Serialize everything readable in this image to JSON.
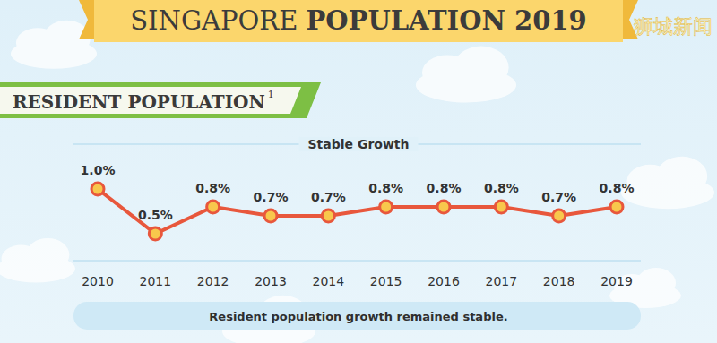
{
  "chart_data": {
    "type": "line",
    "title": "SINGAPORE POPULATION 2019",
    "watermark": "狮城新闻",
    "section": "RESIDENT POPULATION",
    "section_note": "1",
    "subtitle": "Stable Growth",
    "annotation": "Resident population growth remained stable.",
    "categories": [
      "2010",
      "2011",
      "2012",
      "2013",
      "2014",
      "2015",
      "2016",
      "2017",
      "2018",
      "2019"
    ],
    "values": [
      1.0,
      0.5,
      0.8,
      0.7,
      0.7,
      0.8,
      0.8,
      0.8,
      0.7,
      0.8
    ],
    "value_labels": [
      "1.0%",
      "0.5%",
      "0.8%",
      "0.7%",
      "0.7%",
      "0.8%",
      "0.8%",
      "0.8%",
      "0.7%",
      "0.8%"
    ],
    "color": "#e8573c",
    "marker": "circle",
    "data_labels": true,
    "tick_labels": "x",
    "grid": false,
    "ylim": [
      0.2,
      1.5
    ]
  }
}
